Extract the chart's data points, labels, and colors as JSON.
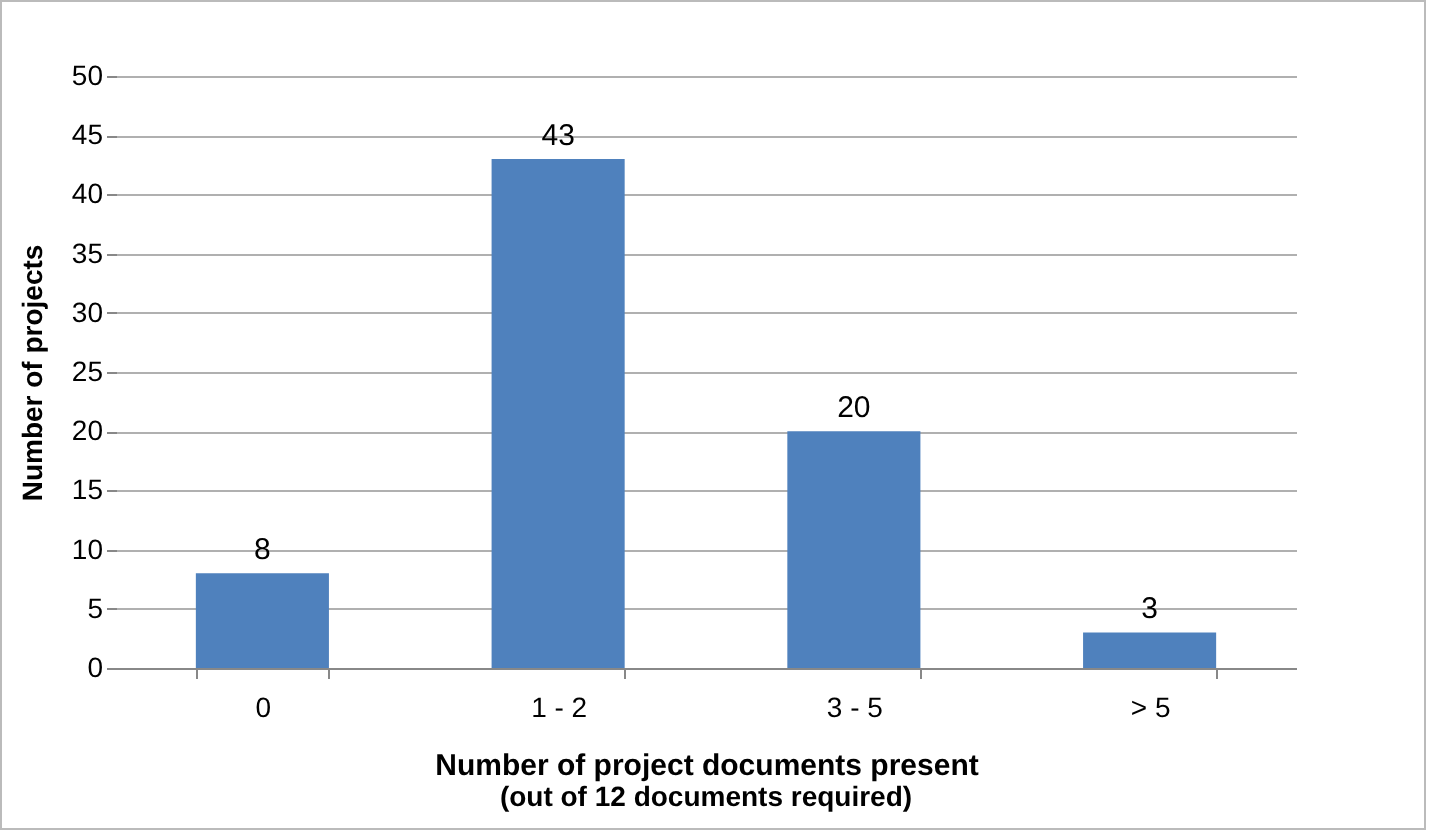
{
  "chart_data": {
    "type": "bar",
    "xlabel": "Number of project documents present",
    "ylabel": "Number of projects",
    "annotations": [
      "(out of 12 documents required)"
    ],
    "categories": [
      "0",
      "1 - 2",
      "3 - 5",
      "> 5"
    ],
    "values": [
      8,
      43,
      20,
      3
    ],
    "color": "#4f81bd",
    "ylim": [
      0,
      50
    ],
    "yticks": [
      0,
      5,
      10,
      15,
      20,
      25,
      30,
      35,
      40,
      45,
      50
    ],
    "grid": "y",
    "data_labels": true
  }
}
